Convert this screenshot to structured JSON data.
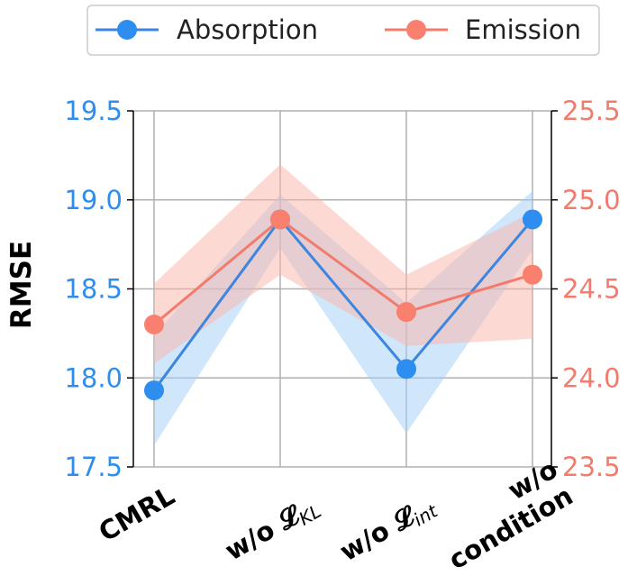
{
  "chart_data": {
    "type": "line",
    "categories": [
      "CMRL",
      "w/o 𝓛KL",
      "w/o 𝓛int",
      "w/o condition"
    ],
    "category_lines": [
      [
        "CMRL"
      ],
      [
        "w/o 𝓛",
        "KL"
      ],
      [
        "w/o 𝓛",
        "int"
      ],
      [
        "w/o",
        "condition"
      ]
    ],
    "title": "",
    "ylabel": "RMSE",
    "xlabel": "",
    "grid": true,
    "legend_position": "top-center",
    "y_left": {
      "ylim": [
        17.5,
        19.5
      ],
      "ticks": [
        "17.5",
        "18.0",
        "18.5",
        "19.0",
        "19.5"
      ],
      "color": "#2e8ef0"
    },
    "y_right": {
      "ylim": [
        23.5,
        25.5
      ],
      "ticks": [
        "23.5",
        "24.0",
        "24.5",
        "25.0",
        "25.5"
      ],
      "color": "#f27b6c"
    },
    "series": [
      {
        "name": "Absorption",
        "axis": "left",
        "color": "#2e8ef0",
        "line_color": "#3d86e0",
        "band_color": "#9fcdf7",
        "values": [
          17.93,
          18.89,
          18.05,
          18.89
        ],
        "lower": [
          17.62,
          18.73,
          17.69,
          18.72
        ],
        "upper": [
          18.24,
          19.03,
          18.42,
          19.05
        ]
      },
      {
        "name": "Emission",
        "axis": "right",
        "color": "#f9806f",
        "line_color": "#f27b6c",
        "band_color": "#fbb4aa",
        "values": [
          24.3,
          24.89,
          24.37,
          24.58
        ],
        "lower": [
          24.08,
          24.58,
          24.18,
          24.22
        ],
        "upper": [
          24.53,
          25.2,
          24.58,
          24.93
        ]
      }
    ]
  }
}
